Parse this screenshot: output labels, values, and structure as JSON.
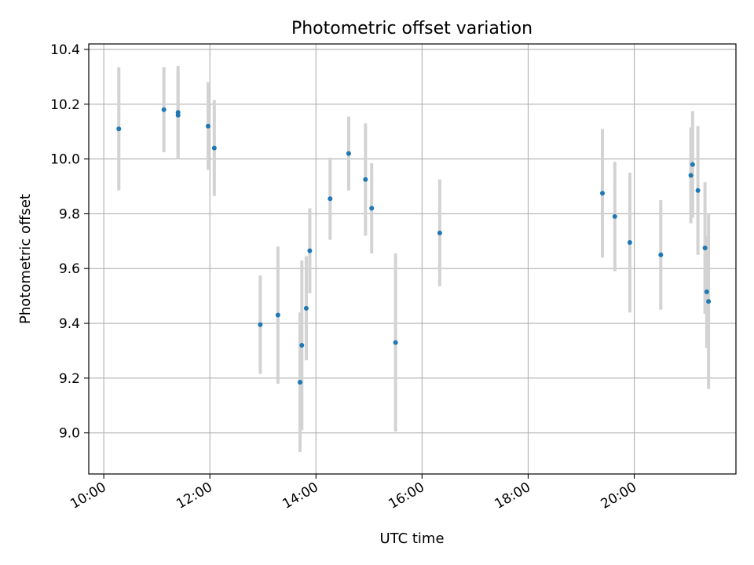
{
  "chart_data": {
    "type": "scatter",
    "title": "Photometric offset variation",
    "xlabel": "UTC time",
    "ylabel": "Photometric offset",
    "x_ticks": [
      "10:00",
      "12:00",
      "14:00",
      "16:00",
      "18:00",
      "20:00"
    ],
    "y_ticks": [
      "9.0",
      "9.2",
      "9.4",
      "9.6",
      "9.8",
      "10.0",
      "10.2",
      "10.4"
    ],
    "xlim": [
      "09:43",
      "21:55"
    ],
    "ylim": [
      8.85,
      10.42
    ],
    "grid": true,
    "colors": {
      "marker": "#1f77b4",
      "errorbar": "#d3d3d3",
      "grid": "#b0b0b0"
    },
    "points": [
      {
        "x": "10:17",
        "y": 10.11,
        "err": 0.225
      },
      {
        "x": "11:08",
        "y": 10.18,
        "err": 0.155
      },
      {
        "x": "11:24",
        "y": 10.17,
        "err": 0.17
      },
      {
        "x": "11:24",
        "y": 10.16,
        "err": 0.16
      },
      {
        "x": "11:58",
        "y": 10.12,
        "err": 0.16
      },
      {
        "x": "12:05",
        "y": 10.04,
        "err": 0.175
      },
      {
        "x": "12:57",
        "y": 9.395,
        "err": 0.18
      },
      {
        "x": "13:17",
        "y": 9.43,
        "err": 0.25
      },
      {
        "x": "13:42",
        "y": 9.185,
        "err": 0.255
      },
      {
        "x": "13:44",
        "y": 9.32,
        "err": 0.31
      },
      {
        "x": "13:49",
        "y": 9.455,
        "err": 0.19
      },
      {
        "x": "13:53",
        "y": 9.665,
        "err": 0.155
      },
      {
        "x": "14:16",
        "y": 9.855,
        "err": 0.15
      },
      {
        "x": "14:37",
        "y": 10.02,
        "err": 0.135
      },
      {
        "x": "14:56",
        "y": 9.925,
        "err": 0.205
      },
      {
        "x": "15:03",
        "y": 9.82,
        "err": 0.165
      },
      {
        "x": "15:30",
        "y": 9.33,
        "err": 0.325
      },
      {
        "x": "16:20",
        "y": 9.73,
        "err": 0.195
      },
      {
        "x": "19:24",
        "y": 9.875,
        "err": 0.235
      },
      {
        "x": "19:38",
        "y": 9.79,
        "err": 0.2
      },
      {
        "x": "19:55",
        "y": 9.695,
        "err": 0.255
      },
      {
        "x": "20:30",
        "y": 9.65,
        "err": 0.2
      },
      {
        "x": "21:04",
        "y": 9.94,
        "err": 0.175
      },
      {
        "x": "21:06",
        "y": 9.98,
        "err": 0.195
      },
      {
        "x": "21:12",
        "y": 9.885,
        "err": 0.235
      },
      {
        "x": "21:20",
        "y": 9.675,
        "err": 0.24
      },
      {
        "x": "21:22",
        "y": 9.515,
        "err": 0.205
      },
      {
        "x": "21:24",
        "y": 9.48,
        "err": 0.32
      }
    ]
  }
}
